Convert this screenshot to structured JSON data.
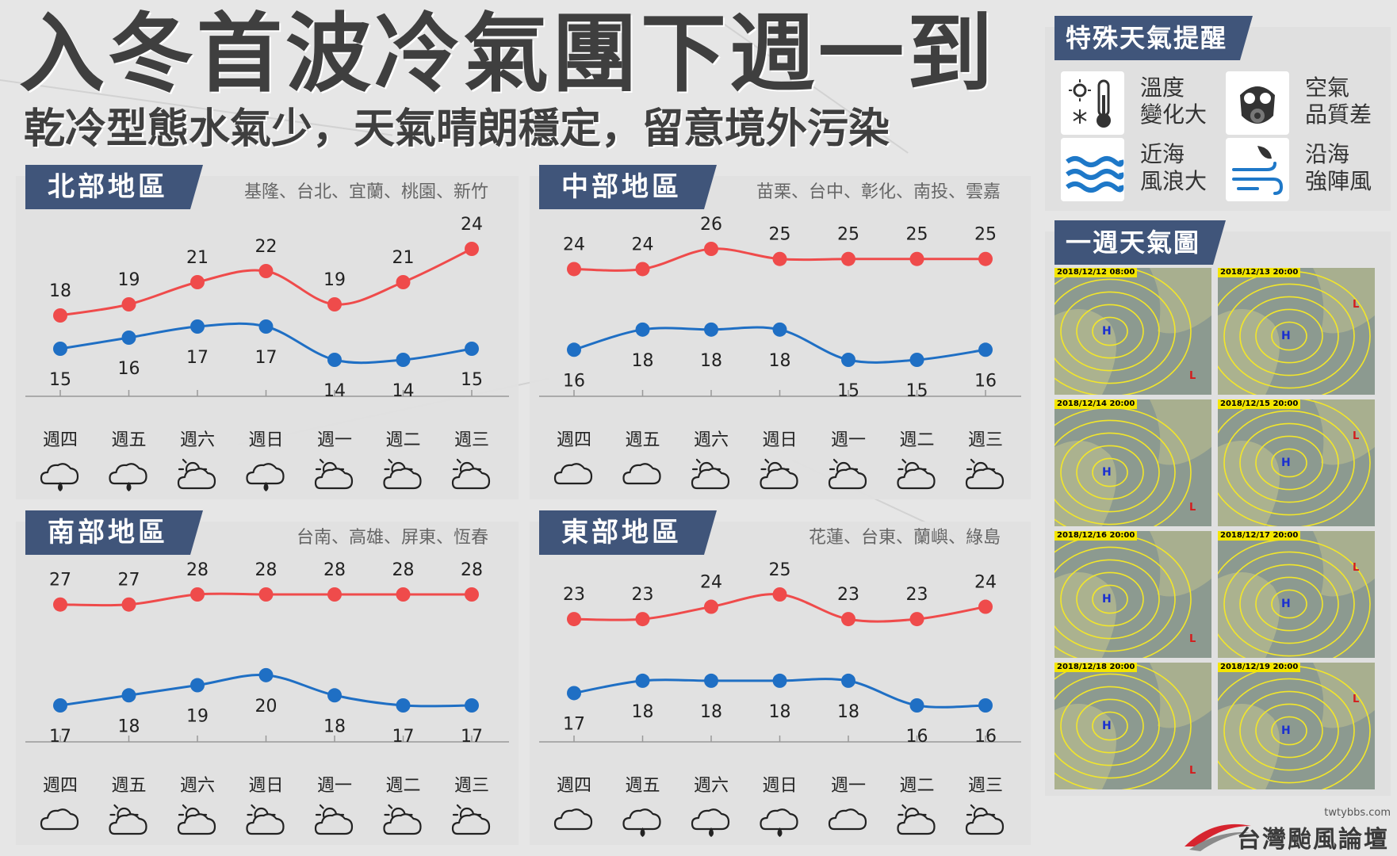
{
  "title": "入冬首波冷氣團下週一到",
  "subtitle": "乾冷型態水氣少，天氣晴朗穩定，留意境外污染",
  "days": [
    "週四",
    "週五",
    "週六",
    "週日",
    "週一",
    "週二",
    "週三"
  ],
  "colors": {
    "high": "#ef4b4b",
    "low": "#1f6fc4",
    "tab": "#40557a"
  },
  "chart_data": [
    {
      "type": "line",
      "name": "北部地區",
      "cities": "基隆、台北、宜蘭、桃園、新竹",
      "x": [
        "週四",
        "週五",
        "週六",
        "週日",
        "週一",
        "週二",
        "週三"
      ],
      "series": [
        {
          "values": [
            18,
            19,
            21,
            22,
            19,
            21,
            24
          ]
        },
        {
          "values": [
            15,
            16,
            17,
            17,
            14,
            14,
            15
          ]
        }
      ],
      "icons": [
        "cloud-rain-icon",
        "cloud-rain-icon",
        "sun-cloud-icon",
        "cloud-rain-icon",
        "sun-cloud-icon",
        "sun-cloud-icon",
        "sun-cloud-icon"
      ]
    },
    {
      "type": "line",
      "name": "中部地區",
      "cities": "苗栗、台中、彰化、南投、雲嘉",
      "x": [
        "週四",
        "週五",
        "週六",
        "週日",
        "週一",
        "週二",
        "週三"
      ],
      "series": [
        {
          "values": [
            24,
            24,
            26,
            25,
            25,
            25,
            25
          ]
        },
        {
          "values": [
            16,
            18,
            18,
            18,
            15,
            15,
            16
          ]
        }
      ],
      "icons": [
        "cloud-icon",
        "cloud-icon",
        "sun-cloud-icon",
        "sun-cloud-icon",
        "sun-cloud-icon",
        "sun-cloud-icon",
        "sun-cloud-icon"
      ]
    },
    {
      "type": "line",
      "name": "南部地區",
      "cities": "台南、高雄、屏東、恆春",
      "x": [
        "週四",
        "週五",
        "週六",
        "週日",
        "週一",
        "週二",
        "週三"
      ],
      "series": [
        {
          "values": [
            27,
            27,
            28,
            28,
            28,
            28,
            28
          ]
        },
        {
          "values": [
            17,
            18,
            19,
            20,
            18,
            17,
            17
          ]
        }
      ],
      "icons": [
        "cloud-icon",
        "sun-cloud-icon",
        "sun-cloud-icon",
        "sun-cloud-icon",
        "sun-cloud-icon",
        "sun-cloud-icon",
        "sun-cloud-icon"
      ]
    },
    {
      "type": "line",
      "name": "東部地區",
      "cities": "花蓮、台東、蘭嶼、綠島",
      "x": [
        "週四",
        "週五",
        "週六",
        "週日",
        "週一",
        "週二",
        "週三"
      ],
      "series": [
        {
          "values": [
            23,
            23,
            24,
            25,
            23,
            23,
            24
          ]
        },
        {
          "values": [
            17,
            18,
            18,
            18,
            18,
            16,
            16
          ]
        }
      ],
      "icons": [
        "cloud-icon",
        "cloud-rain-icon",
        "cloud-rain-icon",
        "cloud-rain-icon",
        "cloud-icon",
        "sun-cloud-icon",
        "sun-cloud-icon"
      ]
    }
  ],
  "alerts": {
    "title": "特殊天氣提醒",
    "items": [
      {
        "label": "溫度變化大",
        "line1": "溫度",
        "line2": "變化大",
        "icon": "thermometer-icon"
      },
      {
        "label": "空氣品質差",
        "line1": "空氣",
        "line2": "品質差",
        "icon": "gas-mask-icon"
      },
      {
        "label": "近海風浪大",
        "line1": "近海",
        "line2": "風浪大",
        "icon": "waves-icon"
      },
      {
        "label": "沿海強陣風",
        "line1": "沿海",
        "line2": "強陣風",
        "icon": "wind-icon"
      }
    ]
  },
  "weekly_maps": {
    "title": "一週天氣圖",
    "dates": [
      "2018/12/12 08:00",
      "2018/12/13 20:00",
      "2018/12/14 20:00",
      "2018/12/15 20:00",
      "2018/12/16 20:00",
      "2018/12/17 20:00",
      "2018/12/18 20:00",
      "2018/12/19 20:00"
    ]
  },
  "logo": {
    "url": "twtybbs.com",
    "name": "台灣颱風論壇"
  }
}
